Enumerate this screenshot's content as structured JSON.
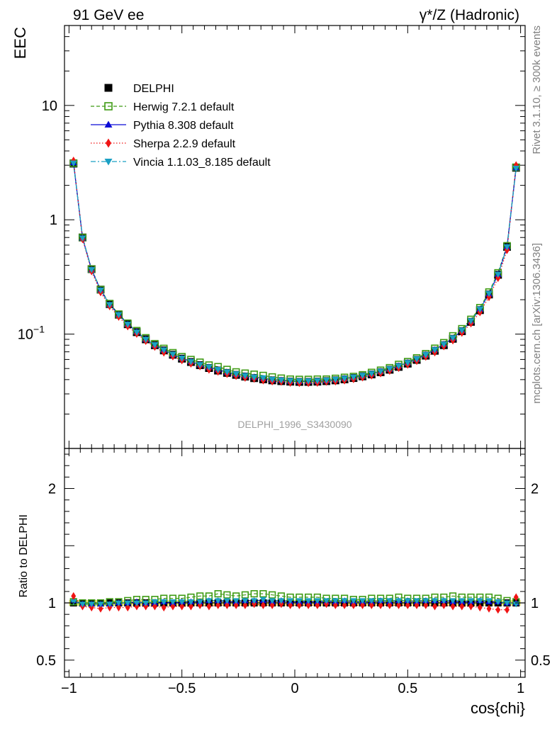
{
  "header": {
    "left": "91 GeV ee",
    "right": "γ*/Z (Hadronic)"
  },
  "side_notes": {
    "upper": "Rivet 3.1.10, ≥ 300k events",
    "lower": "mcplots.cern.ch [arXiv:1306.3436]"
  },
  "watermark": "DELPHI_1996_S3430090",
  "colors": {
    "data": "#000000",
    "herwig": "#3f9b14",
    "pythia": "#0a0ad6",
    "sherpa": "#f01414",
    "vincia": "#1aa0c4",
    "band": "#f5ec7a"
  },
  "chart_data": [
    {
      "type": "line",
      "title": "EEC",
      "ylabel": "EEC",
      "xlabel": "",
      "yscale": "log",
      "xlim": [
        -1.02,
        1.02
      ],
      "ylim": [
        0.01,
        50
      ],
      "ytick_labels": [
        {
          "v": 10,
          "base": "10",
          "exp": ""
        },
        {
          "v": 1,
          "base": "1",
          "exp": ""
        },
        {
          "v": 0.1,
          "base": "10",
          "exp": "−1"
        }
      ],
      "legend": [
        {
          "key": "data",
          "label": "DELPHI",
          "marker": "square",
          "line": "none"
        },
        {
          "key": "herwig",
          "label": "Herwig 7.2.1 default",
          "marker": "open-square",
          "line": "dashed"
        },
        {
          "key": "pythia",
          "label": "Pythia 8.308 default",
          "marker": "triangle-up",
          "line": "solid"
        },
        {
          "key": "sherpa",
          "label": "Sherpa 2.2.9 default",
          "marker": "diamond",
          "line": "dotted"
        },
        {
          "key": "vincia",
          "label": "Vincia 1.1.03_8.185 default",
          "marker": "triangle-down",
          "line": "dashdot"
        }
      ],
      "x": [
        -0.98,
        -0.94,
        -0.9,
        -0.86,
        -0.82,
        -0.78,
        -0.74,
        -0.7,
        -0.66,
        -0.62,
        -0.58,
        -0.54,
        -0.5,
        -0.46,
        -0.42,
        -0.38,
        -0.34,
        -0.3,
        -0.26,
        -0.22,
        -0.18,
        -0.14,
        -0.1,
        -0.06,
        -0.02,
        0.02,
        0.06,
        0.1,
        0.14,
        0.18,
        0.22,
        0.26,
        0.3,
        0.34,
        0.38,
        0.42,
        0.46,
        0.5,
        0.54,
        0.58,
        0.62,
        0.66,
        0.7,
        0.74,
        0.78,
        0.82,
        0.86,
        0.9,
        0.94,
        0.98
      ],
      "data_values": [
        3.1,
        0.7,
        0.37,
        0.245,
        0.183,
        0.148,
        0.122,
        0.104,
        0.09,
        0.08,
        0.072,
        0.066,
        0.061,
        0.057,
        0.0535,
        0.0505,
        0.048,
        0.0458,
        0.044,
        0.0425,
        0.0412,
        0.0402,
        0.0394,
        0.0388,
        0.0384,
        0.0382,
        0.0382,
        0.0384,
        0.0388,
        0.0394,
        0.0402,
        0.0413,
        0.0427,
        0.0444,
        0.0464,
        0.0488,
        0.0517,
        0.0552,
        0.0595,
        0.0648,
        0.0715,
        0.08,
        0.091,
        0.106,
        0.128,
        0.162,
        0.222,
        0.33,
        0.58,
        2.85
      ],
      "ratios": {
        "herwig": [
          1.01,
          1.0,
          1.0,
          1.0,
          1.01,
          1.01,
          1.02,
          1.03,
          1.03,
          1.03,
          1.04,
          1.04,
          1.04,
          1.05,
          1.06,
          1.06,
          1.08,
          1.07,
          1.06,
          1.07,
          1.08,
          1.08,
          1.07,
          1.06,
          1.05,
          1.05,
          1.05,
          1.05,
          1.04,
          1.04,
          1.04,
          1.03,
          1.03,
          1.04,
          1.04,
          1.04,
          1.05,
          1.04,
          1.04,
          1.04,
          1.05,
          1.05,
          1.06,
          1.05,
          1.05,
          1.05,
          1.05,
          1.04,
          1.02,
          1.01
        ],
        "pythia": [
          1.02,
          0.99,
          0.99,
          0.99,
          0.99,
          1.0,
          1.0,
          1.01,
          1.0,
          1.0,
          1.01,
          1.0,
          1.01,
          1.01,
          1.01,
          1.02,
          1.02,
          1.01,
          1.01,
          1.02,
          1.02,
          1.02,
          1.01,
          1.02,
          1.01,
          1.01,
          1.01,
          1.01,
          1.01,
          1.01,
          1.02,
          1.01,
          1.01,
          1.01,
          1.02,
          1.01,
          1.02,
          1.02,
          1.01,
          1.02,
          1.02,
          1.02,
          1.01,
          1.01,
          1.01,
          1.02,
          1.01,
          1.01,
          1.0,
          1.0
        ],
        "sherpa": [
          1.06,
          0.97,
          0.96,
          0.95,
          0.96,
          0.96,
          0.96,
          0.97,
          0.97,
          0.97,
          0.96,
          0.97,
          0.97,
          0.97,
          0.98,
          0.97,
          0.98,
          0.98,
          0.98,
          0.98,
          0.99,
          0.98,
          0.98,
          0.99,
          0.98,
          0.98,
          0.98,
          0.98,
          0.99,
          0.98,
          0.98,
          0.98,
          0.98,
          0.98,
          0.98,
          0.98,
          0.98,
          0.98,
          0.98,
          0.98,
          0.97,
          0.98,
          0.97,
          0.97,
          0.97,
          0.96,
          0.95,
          0.94,
          0.94,
          1.05
        ],
        "vincia": [
          1.01,
          0.99,
          0.99,
          0.99,
          0.99,
          1.0,
          1.0,
          1.0,
          1.0,
          1.01,
          1.01,
          1.01,
          1.01,
          1.01,
          1.01,
          1.02,
          1.02,
          1.02,
          1.02,
          1.02,
          1.02,
          1.03,
          1.02,
          1.02,
          1.02,
          1.02,
          1.02,
          1.02,
          1.02,
          1.02,
          1.02,
          1.02,
          1.02,
          1.02,
          1.02,
          1.02,
          1.02,
          1.02,
          1.02,
          1.02,
          1.02,
          1.02,
          1.02,
          1.02,
          1.02,
          1.02,
          1.02,
          1.01,
          1.0,
          0.99
        ]
      }
    },
    {
      "type": "line",
      "title": "",
      "ylabel": "Ratio to DELPHI",
      "xlabel": "cos{chi}",
      "yscale": "linear",
      "xlim": [
        -1.02,
        1.02
      ],
      "ylim": [
        0.35,
        2.35
      ],
      "xtick_labels": [
        {
          "v": -1,
          "label": "−1"
        },
        {
          "v": -0.5,
          "label": "−0.5"
        },
        {
          "v": 0,
          "label": "0"
        },
        {
          "v": 0.5,
          "label": "0.5"
        },
        {
          "v": 1,
          "label": "1"
        }
      ],
      "ytick_labels": [
        {
          "v": 2,
          "label": "2"
        },
        {
          "v": 1,
          "label": "1"
        },
        {
          "v": 0.5,
          "label": "0.5"
        }
      ]
    }
  ]
}
